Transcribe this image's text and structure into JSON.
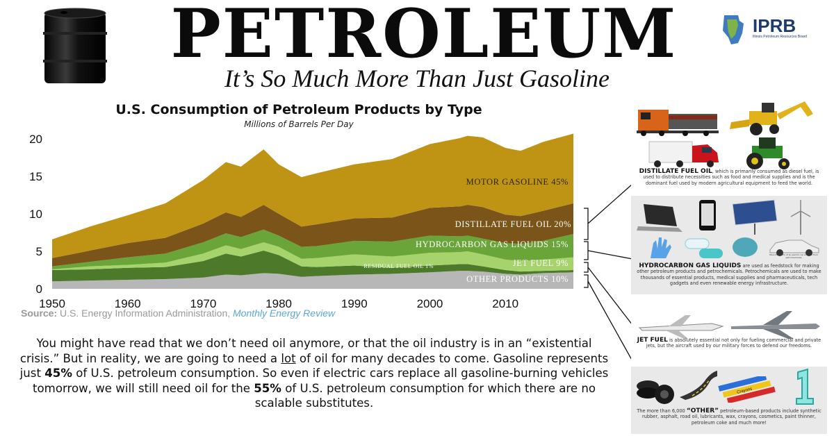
{
  "header": {
    "title": "PETROLEUM",
    "subtitle": "It’s So Much More Than Just Gasoline",
    "logo_text": "IPRB",
    "logo_small": "Illinois Petroleum Resources Board"
  },
  "chart_data": {
    "type": "area",
    "title": "U.S. Consumption of Petroleum Products by Type",
    "subtitle": "Millions of Barrels Per Day",
    "xlim": [
      1950,
      2019
    ],
    "ylim": [
      0,
      20
    ],
    "x_ticks": [
      1950,
      1960,
      1970,
      1980,
      1990,
      2000,
      2010
    ],
    "y_ticks": [
      0,
      5,
      10,
      15,
      20
    ],
    "x": [
      1950,
      1955,
      1960,
      1965,
      1970,
      1973,
      1975,
      1978,
      1980,
      1983,
      1985,
      1990,
      1995,
      2000,
      2004,
      2005,
      2007,
      2010,
      2012,
      2015,
      2019
    ],
    "stack_order": [
      "Other Products",
      "Residual Fuel Oil",
      "Jet Fuel",
      "Hydrocarbon Gas Liquids",
      "Distillate Fuel Oil",
      "Motor Gasoline"
    ],
    "series": [
      {
        "name": "Other Products",
        "percent": "10%",
        "color": "#b7b7b7",
        "values": [
          1.0,
          1.1,
          1.2,
          1.3,
          1.5,
          1.9,
          1.8,
          2.1,
          2.0,
          1.6,
          1.7,
          1.9,
          2.0,
          2.2,
          2.4,
          2.4,
          2.3,
          2.0,
          1.9,
          2.1,
          2.2
        ]
      },
      {
        "name": "Residual Fuel Oil",
        "percent": "1%",
        "color": "#4c7a2a",
        "values": [
          1.5,
          1.5,
          1.6,
          1.6,
          2.2,
          2.8,
          2.5,
          3.0,
          2.5,
          1.4,
          1.2,
          1.2,
          0.8,
          0.9,
          0.9,
          0.9,
          0.7,
          0.5,
          0.4,
          0.3,
          0.3
        ]
      },
      {
        "name": "Jet Fuel",
        "percent": "9%",
        "color": "#a6d36c",
        "values": [
          0.1,
          0.4,
          0.4,
          0.6,
          1.0,
          1.1,
          1.0,
          1.1,
          1.1,
          1.0,
          1.2,
          1.5,
          1.5,
          1.7,
          1.6,
          1.7,
          1.6,
          1.4,
          1.4,
          1.5,
          1.7
        ]
      },
      {
        "name": "Hydrocarbon Gas Liquids",
        "percent": "15%",
        "color": "#6aa53a",
        "values": [
          0.4,
          0.6,
          1.0,
          1.2,
          1.5,
          1.6,
          1.6,
          1.7,
          1.5,
          1.6,
          1.6,
          1.8,
          2.0,
          2.3,
          2.1,
          2.1,
          2.1,
          2.2,
          2.3,
          2.5,
          3.1
        ]
      },
      {
        "name": "Distillate Fuel Oil",
        "percent": "20%",
        "color": "#7a5418",
        "values": [
          1.1,
          1.5,
          1.9,
          2.1,
          2.5,
          2.8,
          2.7,
          3.3,
          2.9,
          2.7,
          2.9,
          3.0,
          3.2,
          3.7,
          4.0,
          4.1,
          4.2,
          3.8,
          3.7,
          4.0,
          4.1
        ]
      },
      {
        "name": "Motor Gasoline",
        "percent": "45%",
        "color": "#bf9415",
        "values": [
          2.5,
          3.2,
          3.7,
          4.6,
          5.8,
          6.7,
          6.7,
          7.4,
          6.6,
          6.6,
          6.8,
          7.2,
          7.8,
          8.5,
          9.1,
          9.2,
          9.3,
          8.9,
          8.7,
          9.2,
          9.3
        ]
      }
    ],
    "area_labels": [
      {
        "text": "MOTOR GASOLINE 45%",
        "color": "#2a2510"
      },
      {
        "text": "DISTILLATE FUEL OIL  20%",
        "color": "#ffffff"
      },
      {
        "text": "HYDROCARBON GAS LIQUIDS 15%",
        "color": "#ffffff"
      },
      {
        "text": "JET FUEL 9%",
        "color": "#ffffff"
      },
      {
        "text": "RESIDUAL FUEL OIL 1%",
        "color": "#ffffff"
      },
      {
        "text": "OTHER PRODUCTS 10%",
        "color": "#ffffff"
      }
    ]
  },
  "source": {
    "prefix": "Source:",
    "text": " U.S. Energy Information Administration, ",
    "link": "Monthly Energy Review"
  },
  "body": {
    "part1": "You might have read that we don’t need oil anymore, or that the oil industry is in an “existential crisis.” But in reality, we are going to need a ",
    "lot": "lot",
    "part2": " of oil for many decades to come.  Gasoline represents just ",
    "pct45": "45%",
    "part3": " of U.S. petroleum consumption. So even if electric cars replace all gasoline-burning vehicles tomorrow, we will still need oil for the ",
    "pct55": "55%",
    "part4": " of U.S. petroleum consumption for which there are no scalable substitutes."
  },
  "panels": {
    "distillate": {
      "heading": "DISTILLATE FUEL OIL",
      "text": ", which is primarily consumed as diesel fuel, is used to distribute necessities such as food and medical supplies and is the dominant fuel used by modern agricultural equipment to feed the world."
    },
    "hgl": {
      "heading": "HYDROCARBON GAS LIQUIDS",
      "text": " are used as feedstock for making other petroleum products and petrochemicals. Petrochemicals are used to make thousands of essential products, medical supplies and pharmaceuticals, tech gadgets and even renewable energy infrastructure.",
      "ev_note": "More than 70% of an electric car is made from petrochemicals"
    },
    "jet": {
      "heading": "JET FUEL",
      "text": " is absolutely essential not only for fueling commercial and private jets, but the aircraft used by our military forces to defend our freedoms."
    },
    "other": {
      "prefix": "The more than 6,000 ",
      "heading": "“OTHER”",
      "text": " petroleum-based products include synthetic rubber, asphalt, road oil, lubricants, wax, crayons, cosmetics, paint thinner, petroleum coke and much more!",
      "crayon_label": "Crayons"
    }
  }
}
